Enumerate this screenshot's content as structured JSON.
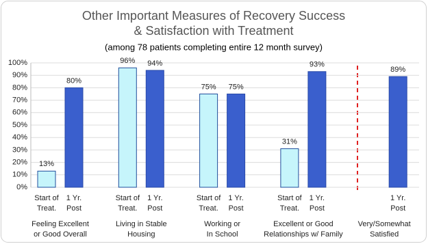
{
  "chart_data": {
    "type": "bar",
    "title": [
      "Other Important Measures of Recovery Success",
      "& Satisfaction with Treatment"
    ],
    "subtitle": "(among 78 patients completing entire 12 month survey)",
    "categories": [
      [
        "Feeling Excellent",
        "or Good Overall"
      ],
      [
        "Living in Stable",
        "Housing"
      ],
      [
        "Working or",
        "In School"
      ],
      [
        "Excellent or Good",
        "Relationships w/ Family"
      ],
      [
        "Very/Somewhat",
        "Satisfied"
      ]
    ],
    "series": [
      {
        "name": [
          "Start of",
          "Treat."
        ],
        "color": "#c6f5fb",
        "stroke": "#1f4e9c",
        "values": [
          13,
          96,
          75,
          31,
          null
        ],
        "value_labels": [
          "13%",
          "96%",
          "75%",
          "31%",
          null
        ]
      },
      {
        "name": [
          "1 Yr.",
          "Post"
        ],
        "color": "#3a5fcd",
        "stroke": "#2a4aa8",
        "values": [
          80,
          94,
          75,
          93,
          89
        ],
        "value_labels": [
          "80%",
          "94%",
          "75%",
          "93%",
          "89%"
        ]
      }
    ],
    "ylim": [
      0,
      100
    ],
    "yticks": [
      {
        "value": 0,
        "label": "0%"
      },
      {
        "value": 10,
        "label": "10%"
      },
      {
        "value": 20,
        "label": "20%"
      },
      {
        "value": 30,
        "label": "30%"
      },
      {
        "value": 40,
        "label": "40%"
      },
      {
        "value": 50,
        "label": "50%"
      },
      {
        "value": 60,
        "label": "60%"
      },
      {
        "value": 70,
        "label": "70%"
      },
      {
        "value": 80,
        "label": "80%"
      },
      {
        "value": 90,
        "label": "90%"
      },
      {
        "value": 100,
        "label": "100%"
      }
    ],
    "grid": true
  }
}
